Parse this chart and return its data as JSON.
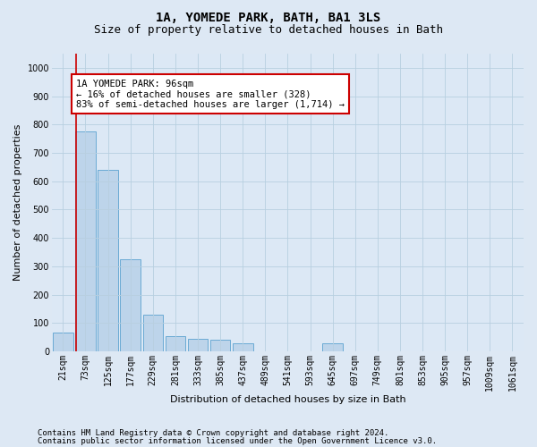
{
  "title": "1A, YOMEDE PARK, BATH, BA1 3LS",
  "subtitle": "Size of property relative to detached houses in Bath",
  "xlabel": "Distribution of detached houses by size in Bath",
  "ylabel": "Number of detached properties",
  "bin_labels": [
    "21sqm",
    "73sqm",
    "125sqm",
    "177sqm",
    "229sqm",
    "281sqm",
    "333sqm",
    "385sqm",
    "437sqm",
    "489sqm",
    "541sqm",
    "593sqm",
    "645sqm",
    "697sqm",
    "749sqm",
    "801sqm",
    "853sqm",
    "905sqm",
    "957sqm",
    "1009sqm",
    "1061sqm"
  ],
  "bar_values": [
    65,
    775,
    640,
    325,
    130,
    55,
    45,
    40,
    30,
    0,
    0,
    0,
    30,
    0,
    0,
    0,
    0,
    0,
    0,
    0,
    0
  ],
  "bar_color": "#bdd4ea",
  "bar_edge_color": "#6aaad4",
  "red_line_color": "#cc0000",
  "red_line_x": 0.57,
  "annotation_text": "1A YOMEDE PARK: 96sqm\n← 16% of detached houses are smaller (328)\n83% of semi-detached houses are larger (1,714) →",
  "annotation_box_color": "#ffffff",
  "annotation_box_edge_color": "#cc0000",
  "ylim": [
    0,
    1050
  ],
  "yticks": [
    0,
    100,
    200,
    300,
    400,
    500,
    600,
    700,
    800,
    900,
    1000
  ],
  "footer_line1": "Contains HM Land Registry data © Crown copyright and database right 2024.",
  "footer_line2": "Contains public sector information licensed under the Open Government Licence v3.0.",
  "bg_color": "#dde8f4",
  "plot_bg_color": "#dce8f5",
  "grid_color": "#b8cfe0",
  "title_fontsize": 10,
  "subtitle_fontsize": 9,
  "ylabel_fontsize": 8,
  "xlabel_fontsize": 8,
  "tick_fontsize": 7,
  "annotation_fontsize": 7.5,
  "footer_fontsize": 6.5
}
